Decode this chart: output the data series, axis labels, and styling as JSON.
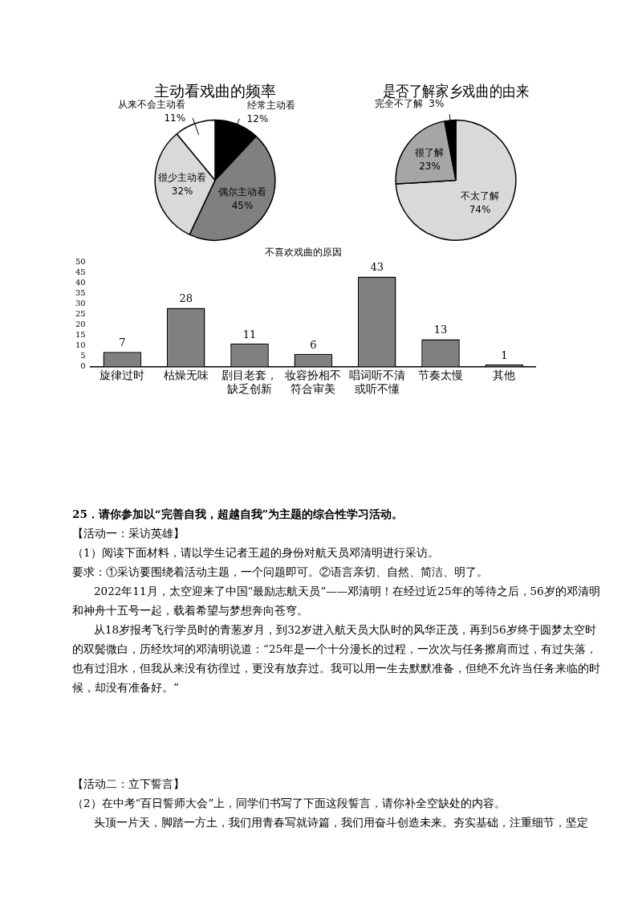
{
  "chart_data": [
    {
      "type": "pie",
      "title": "主动看戏曲的频率",
      "categories": [
        "经常主动看",
        "偶尔主动看",
        "很少主动看",
        "从来不会主动看"
      ],
      "values": [
        12,
        45,
        32,
        11
      ],
      "value_labels": [
        "12%",
        "45%",
        "32%",
        "11%"
      ],
      "colors": [
        "#000000",
        "#808080",
        "#d9d9d9",
        "#ffffff"
      ]
    },
    {
      "type": "pie",
      "title": "是否了解家乡戏曲的由来",
      "categories": [
        "不太了解",
        "很了解",
        "完全不了解"
      ],
      "values": [
        74,
        23,
        3
      ],
      "value_labels": [
        "74%",
        "23%",
        "3%"
      ],
      "colors": [
        "#d9d9d9",
        "#a6a6a6",
        "#000000"
      ]
    },
    {
      "type": "bar",
      "title": "不喜欢戏曲的原因",
      "categories": [
        "旋律过时",
        "枯燥无味",
        "剧目老套，缺乏创新",
        "妆容扮相不符合审美",
        "唱词听不清或听不懂",
        "节奏太慢",
        "其他"
      ],
      "values": [
        7,
        28,
        11,
        6,
        43,
        13,
        1
      ],
      "color": "#808080",
      "ylim": [
        0,
        50
      ],
      "yticks": [
        0,
        5,
        10,
        15,
        20,
        25,
        30,
        35,
        40,
        45,
        50
      ],
      "grid": false,
      "data_labels": true
    },
    {
      "type": "other",
      "annotations": [
        "25．请你参加以“完善自我，超越自我”为主题的综合性学习活动。",
        "【活动一：采访英雄】",
        "（1）阅读下面材料，请以学生记者王超的身份对航天员邓清明进行采访。",
        "要求：①采访要围绕着活动主题，一个问题即可。②语言亲切、自然、简洁、明了。",
        "2022年11月，太空迎来了中国“最励志航天员”——邓清明！在经过近25年的等待之后，56岁的邓清明和神舟十五号一起，载着希望与梦想奔向苍穹。",
        "从18岁报考飞行学员时的青葱岁月，到32岁进入航天员大队时的风华正茂，再到56岁终于圆梦太空时的双鬓微白，历经坎坷的邓清明说道：“25年是一个十分漫长的过程，一次次与任务擦肩而过，有过失落，也有过泪水，但我从来没有彷徨过，更没有放弃过。我可以用一生去默默准备，但绝不允许当任务来临的时候，却没有准备好。”",
        "【活动二：立下誓言】",
        "（2）在中考“百日誓师大会”上，同学们书写了下面这段誓言，请你补全空缺处的内容。",
        "头顶一片天，脚踏一方土，我们用青春写就诗篇，我们用奋斗创造未来。夯实基础，注重细节，坚定"
      ]
    }
  ]
}
